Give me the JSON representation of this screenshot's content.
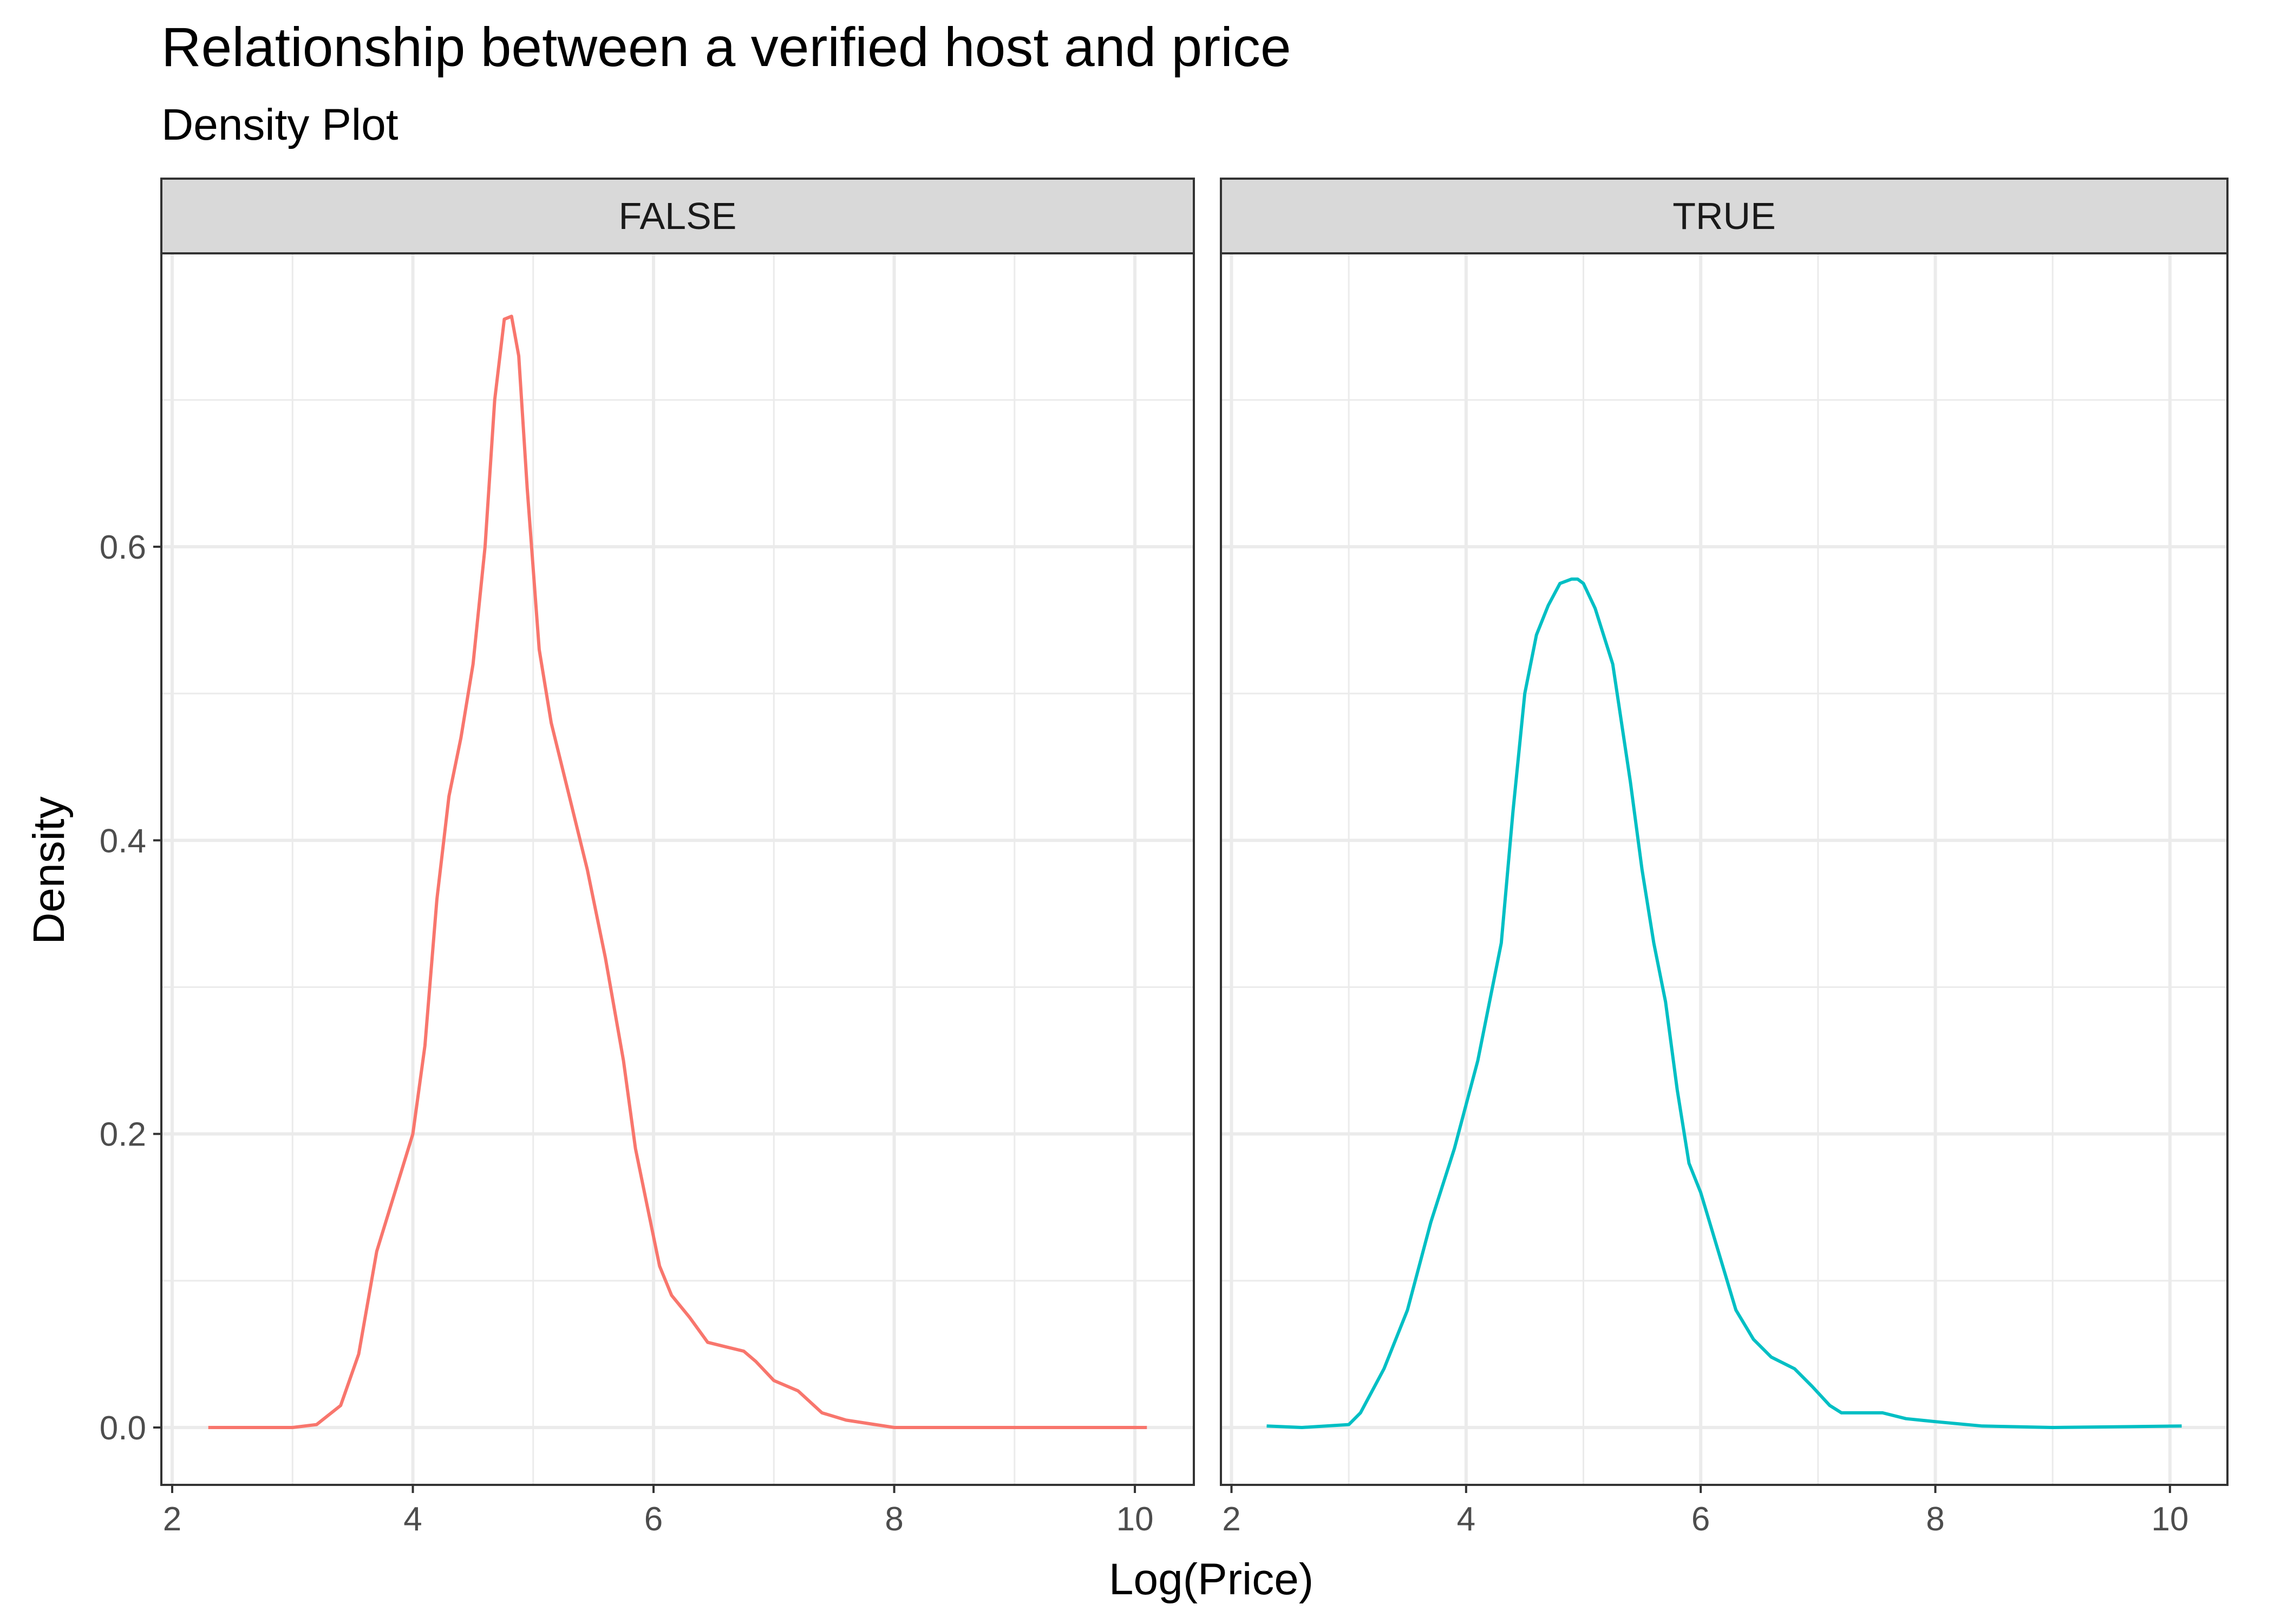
{
  "chart_data": {
    "type": "line",
    "title": "Relationship between a verified host and price",
    "subtitle": "Density Plot",
    "xlabel": "Log(Price)",
    "ylabel": "Density",
    "xlim": [
      2,
      10
    ],
    "ylim": [
      0,
      0.76
    ],
    "xticks": [
      2,
      4,
      6,
      8,
      10
    ],
    "yticks": [
      0.0,
      0.2,
      0.4,
      0.6
    ],
    "xtick_labels": [
      "2",
      "4",
      "6",
      "8",
      "10"
    ],
    "ytick_labels": [
      "0.0",
      "0.2",
      "0.4",
      "0.6"
    ],
    "grid": true,
    "legend": "none",
    "facets": [
      {
        "label": "FALSE",
        "color": "#F8766D",
        "x": [
          2.3,
          3.0,
          3.2,
          3.4,
          3.55,
          3.7,
          3.85,
          4.0,
          4.1,
          4.2,
          4.3,
          4.4,
          4.5,
          4.6,
          4.68,
          4.76,
          4.82,
          4.88,
          4.95,
          5.05,
          5.15,
          5.3,
          5.45,
          5.6,
          5.75,
          5.85,
          5.95,
          6.05,
          6.15,
          6.3,
          6.45,
          6.6,
          6.75,
          6.85,
          7.0,
          7.2,
          7.4,
          7.6,
          8.0,
          9.0,
          10.1
        ],
        "y": [
          0.0,
          0.0,
          0.002,
          0.015,
          0.05,
          0.12,
          0.16,
          0.2,
          0.26,
          0.36,
          0.43,
          0.47,
          0.52,
          0.6,
          0.7,
          0.755,
          0.757,
          0.73,
          0.64,
          0.53,
          0.48,
          0.43,
          0.38,
          0.32,
          0.25,
          0.19,
          0.15,
          0.11,
          0.09,
          0.075,
          0.058,
          0.055,
          0.052,
          0.045,
          0.032,
          0.025,
          0.01,
          0.005,
          0.0,
          0.0,
          0.0
        ]
      },
      {
        "label": "TRUE",
        "color": "#00BFC4",
        "x": [
          2.3,
          2.6,
          3.0,
          3.1,
          3.3,
          3.5,
          3.7,
          3.9,
          4.1,
          4.3,
          4.4,
          4.5,
          4.6,
          4.7,
          4.8,
          4.9,
          4.95,
          5.0,
          5.1,
          5.25,
          5.4,
          5.5,
          5.6,
          5.7,
          5.8,
          5.9,
          6.0,
          6.15,
          6.3,
          6.45,
          6.6,
          6.8,
          6.95,
          7.1,
          7.2,
          7.35,
          7.55,
          7.75,
          8.0,
          8.4,
          9.0,
          10.1
        ],
        "y": [
          0.001,
          0.0,
          0.002,
          0.01,
          0.04,
          0.08,
          0.14,
          0.19,
          0.25,
          0.33,
          0.42,
          0.5,
          0.54,
          0.56,
          0.575,
          0.578,
          0.578,
          0.575,
          0.558,
          0.52,
          0.44,
          0.38,
          0.33,
          0.29,
          0.23,
          0.18,
          0.16,
          0.12,
          0.08,
          0.06,
          0.048,
          0.04,
          0.028,
          0.015,
          0.01,
          0.01,
          0.01,
          0.006,
          0.004,
          0.001,
          0.0,
          0.001
        ]
      }
    ]
  }
}
